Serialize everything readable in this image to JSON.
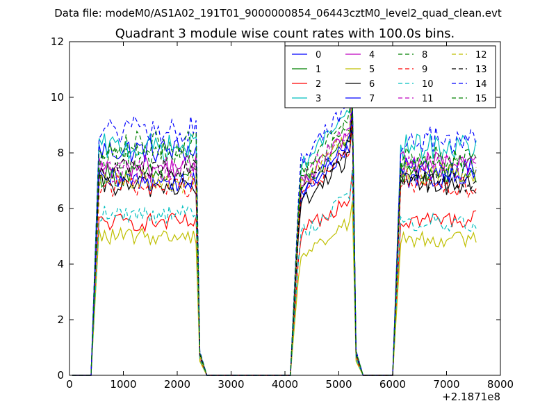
{
  "figure": {
    "suptitle": "Data file: modeM0/AS1A02_191T01_9000000854_06443cztM0_level2_quad_clean.evt",
    "offset_label": "+2.1871e8"
  },
  "chart_data": {
    "type": "line",
    "title": "Quadrant 3 module wise count rates with 100.0s bins.",
    "xlabel": "",
    "ylabel": "",
    "xlim": [
      0,
      8000
    ],
    "ylim": [
      0,
      12
    ],
    "xticks": [
      0,
      1000,
      2000,
      3000,
      4000,
      5000,
      6000,
      7000,
      8000
    ],
    "yticks": [
      0,
      2,
      4,
      6,
      8,
      10,
      12
    ],
    "x_offset": 218710000,
    "legend_position": "top-right",
    "segments": [
      {
        "start": 550,
        "end": 2350,
        "drop_end": 2550
      },
      {
        "start": 4250,
        "end": 5250,
        "drop_end": 5450
      },
      {
        "start": 6150,
        "end": 7550,
        "drop_end": 7550
      }
    ],
    "series": [
      {
        "name": "0",
        "color": "#0000ff",
        "dash": "solid",
        "levels": [
          8.1,
          7.6,
          7.4
        ]
      },
      {
        "name": "1",
        "color": "#008000",
        "dash": "solid",
        "levels": [
          7.2,
          7.9,
          7.2
        ]
      },
      {
        "name": "2",
        "color": "#ff0000",
        "dash": "solid",
        "levels": [
          5.5,
          5.9,
          5.6
        ]
      },
      {
        "name": "3",
        "color": "#00bfbf",
        "dash": "solid",
        "levels": [
          8.2,
          8.7,
          8.2
        ]
      },
      {
        "name": "4",
        "color": "#bf00bf",
        "dash": "solid",
        "levels": [
          7.5,
          8.0,
          7.6
        ]
      },
      {
        "name": "5",
        "color": "#bfbf00",
        "dash": "solid",
        "levels": [
          5.0,
          5.0,
          4.9
        ]
      },
      {
        "name": "6",
        "color": "#000000",
        "dash": "solid",
        "levels": [
          6.8,
          7.2,
          6.9
        ]
      },
      {
        "name": "7",
        "color": "#0000ff",
        "dash": "solid",
        "levels": [
          7.0,
          7.7,
          7.1
        ]
      },
      {
        "name": "8",
        "color": "#008000",
        "dash": "dashed",
        "levels": [
          7.9,
          8.3,
          7.7
        ]
      },
      {
        "name": "9",
        "color": "#ff0000",
        "dash": "dashed",
        "levels": [
          6.8,
          7.5,
          6.8
        ]
      },
      {
        "name": "10",
        "color": "#00bfbf",
        "dash": "dashed",
        "levels": [
          5.8,
          5.9,
          5.5
        ]
      },
      {
        "name": "11",
        "color": "#bf00bf",
        "dash": "dashed",
        "levels": [
          7.3,
          8.2,
          7.5
        ]
      },
      {
        "name": "12",
        "color": "#bfbf00",
        "dash": "dashed",
        "levels": [
          7.0,
          8.0,
          7.3
        ]
      },
      {
        "name": "13",
        "color": "#000000",
        "dash": "dashed",
        "levels": [
          7.4,
          7.6,
          7.0
        ]
      },
      {
        "name": "14",
        "color": "#0000ff",
        "dash": "dashed",
        "levels": [
          8.8,
          9.0,
          8.5
        ]
      },
      {
        "name": "15",
        "color": "#008000",
        "dash": "dashed",
        "levels": [
          8.3,
          8.5,
          7.8
        ]
      }
    ]
  }
}
